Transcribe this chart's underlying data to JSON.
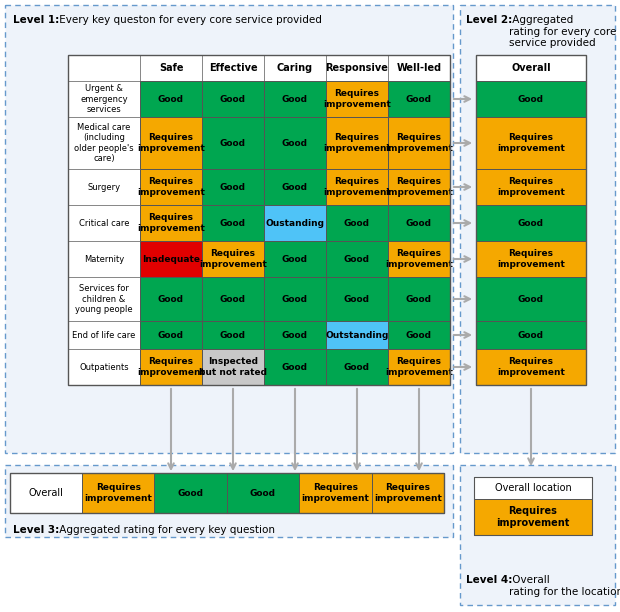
{
  "colors": {
    "good": "#00a650",
    "requires_improvement": "#f5a800",
    "inadequate": "#e10000",
    "outstanding": "#4fc3f7",
    "inspected_not_rated": "#c8c8c8",
    "white": "#ffffff",
    "box_bg": "#eef3fa"
  },
  "col_headers": [
    "Safe",
    "Effective",
    "Caring",
    "Responsive",
    "Well-led"
  ],
  "row_headers": [
    "Urgent &\nemergency\nservices",
    "Medical care\n(including\nolder people's\ncare)",
    "Surgery",
    "Critical care",
    "Maternity",
    "Services for\nchildren &\nyoung people",
    "End of life care",
    "Outpatients"
  ],
  "table_data": [
    [
      "good",
      "good",
      "good",
      "requires_improvement",
      "good"
    ],
    [
      "requires_improvement",
      "good",
      "good",
      "requires_improvement",
      "requires_improvement"
    ],
    [
      "requires_improvement",
      "good",
      "good",
      "requires_improvement",
      "requires_improvement"
    ],
    [
      "requires_improvement",
      "good",
      "outstanding",
      "good",
      "good"
    ],
    [
      "inadequate",
      "requires_improvement",
      "good",
      "good",
      "requires_improvement"
    ],
    [
      "good",
      "good",
      "good",
      "good",
      "good"
    ],
    [
      "good",
      "good",
      "good",
      "outstanding",
      "good"
    ],
    [
      "requires_improvement",
      "inspected_not_rated",
      "good",
      "good",
      "requires_improvement"
    ]
  ],
  "table_labels": [
    [
      "Good",
      "Good",
      "Good",
      "Requires\nimprovement",
      "Good"
    ],
    [
      "Requires\nimprovement",
      "Good",
      "Good",
      "Requires\nimprovement",
      "Requires\nimprovement"
    ],
    [
      "Requires\nimprovement",
      "Good",
      "Good",
      "Requires\nimprovement",
      "Requires\nimprovement"
    ],
    [
      "Requires\nimprovement",
      "Good",
      "Oustanding",
      "Good",
      "Good"
    ],
    [
      "Inadequate",
      "Requires\nimprovement",
      "Good",
      "Good",
      "Requires\nimprovement"
    ],
    [
      "Good",
      "Good",
      "Good",
      "Good",
      "Good"
    ],
    [
      "Good",
      "Good",
      "Good",
      "Outstanding",
      "Good"
    ],
    [
      "Requires\nimprovement",
      "Inspected\nbut not rated",
      "Good",
      "Good",
      "Requires\nimprovement"
    ]
  ],
  "overall_col": [
    "good",
    "requires_improvement",
    "requires_improvement",
    "good",
    "requires_improvement",
    "good",
    "good",
    "requires_improvement"
  ],
  "overall_col_labels": [
    "Good",
    "Requires\nimprovement",
    "Requires\nimprovement",
    "Good",
    "Requires\nimprovement",
    "Good",
    "Good",
    "Requires\nimprovement"
  ],
  "level3_row": [
    "requires_improvement",
    "good",
    "good",
    "requires_improvement",
    "requires_improvement"
  ],
  "level3_labels": [
    "Requires\nimprovement",
    "Good",
    "Good",
    "Requires\nimprovement",
    "Requires\nimprovement"
  ],
  "level4_color": "requires_improvement",
  "level4_label": "Requires\nimprovement",
  "level1_bold": "Level 1:",
  "level1_rest": " Every key queston for every core service provided",
  "level2_bold": "Level 2:",
  "level2_rest": " Aggregated\nrating for every core\nservice provided",
  "level3_bold": "Level 3:",
  "level3_rest": " Aggregated rating for every key question",
  "level4_bold": "Level 4:",
  "level4_rest": " Overall\nrating for the location",
  "overall_location_text": "Overall location"
}
